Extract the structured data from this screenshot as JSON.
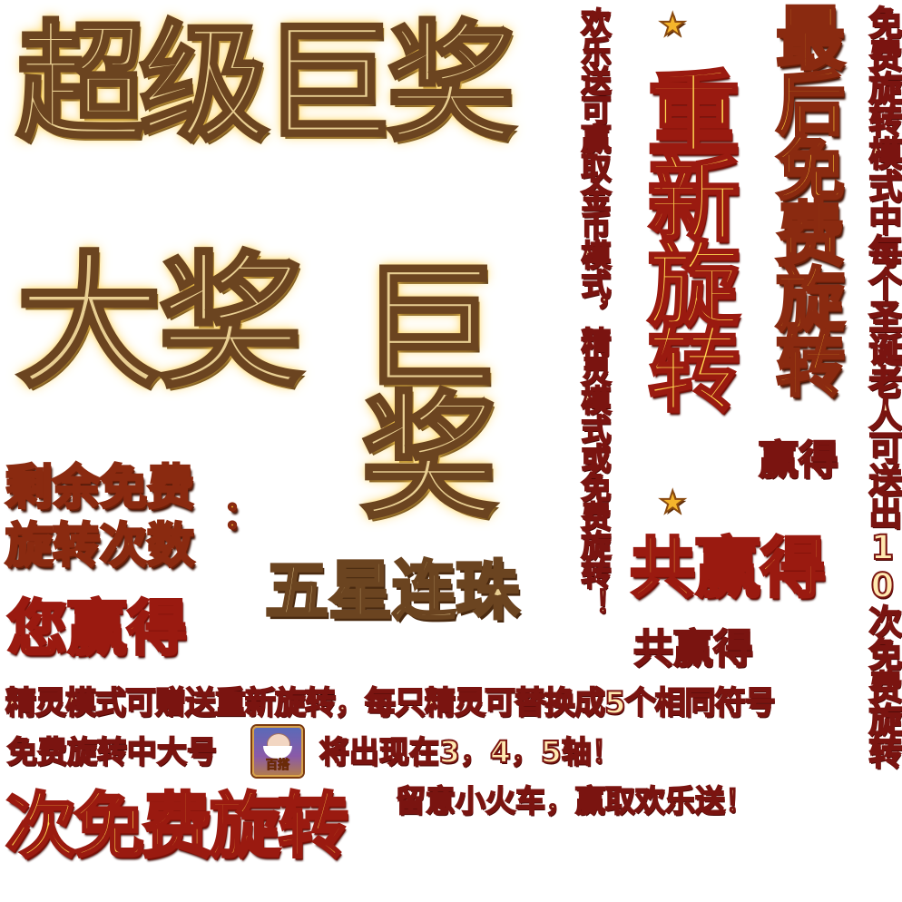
{
  "texts": {
    "super_jackpot": "超级巨奖",
    "big_jackpot": "大奖",
    "huge_jackpot": "巨奖",
    "remaining_free_1": "剩余免费",
    "remaining_free_2": "旋转次数",
    "colon": "：",
    "five_star": "五星连珠",
    "you_win": "您赢得",
    "spirit_mode_line": "精灵模式可赠送重新旋转，每只精灵可替换成5个相同符号",
    "free_spin_big_prefix": "免费旋转中大号",
    "free_spin_big_suffix": "将出现在3，4，5轴！",
    "times_free_spin": "次免费旋转",
    "train_line": "留意小火车，赢取欢乐送！",
    "vertical_mode_line": "欢乐送可赢取金币模式，精灵模式或免费旋转！",
    "respin": "重新旋转",
    "last_free_spin": "最后免费旋转",
    "win_small": "赢得",
    "total_win_big": "共赢得",
    "total_win_small": "共赢得",
    "far_right_vertical": "免费旋转模式中每个圣诞老人可送出10次免费旋转",
    "icon_label": "百搭"
  },
  "icons": {
    "star_top": "star-icon",
    "star_mid": "star-icon",
    "wild_symbol": "santa-wild-icon"
  },
  "colors": {
    "gold": "#ffcf3a",
    "bronze": "#e9cf92",
    "dark_red_outline": "#9a1a10"
  }
}
